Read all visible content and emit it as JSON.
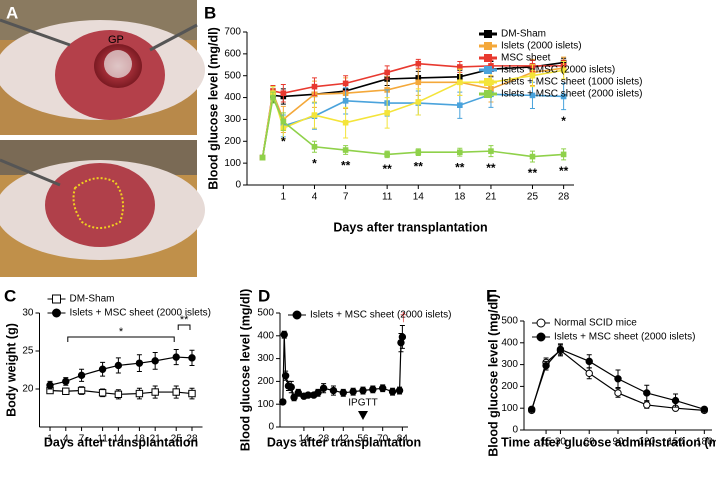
{
  "figure_a": {
    "panel": "A",
    "label": "GP"
  },
  "chart_data": [
    {
      "type": "line",
      "panel": "B",
      "ylabel": "Blood glucose level (mg/dl)",
      "xlabel": "Days after transplantation",
      "xlim": [
        -2.5,
        29
      ],
      "xticks": [
        1,
        4,
        7,
        11,
        14,
        18,
        21,
        25,
        28
      ],
      "ylim": [
        0,
        700
      ],
      "yticks": [
        0,
        100,
        200,
        300,
        400,
        500,
        600,
        700
      ],
      "legend": "upper right",
      "x": [
        -1,
        0,
        1,
        4,
        7,
        11,
        14,
        18,
        21,
        25,
        28
      ],
      "series": [
        {
          "name": "DM-Sham",
          "color": "#000000",
          "marker": "square",
          "filled": true,
          "values": [
            125,
            410,
            405,
            415,
            430,
            485,
            490,
            495,
            530,
            540,
            560
          ],
          "errors": [
            8,
            30,
            35,
            40,
            35,
            30,
            30,
            30,
            35,
            30,
            20
          ]
        },
        {
          "name": "Islets (2000 islets)",
          "color": "#f4a83a",
          "marker": "square",
          "filled": true,
          "values": [
            125,
            420,
            300,
            415,
            420,
            435,
            470,
            470,
            440,
            515,
            535
          ],
          "errors": [
            8,
            30,
            60,
            60,
            70,
            60,
            60,
            60,
            60,
            60,
            50
          ]
        },
        {
          "name": "MSC sheet",
          "color": "#e8392f",
          "marker": "square",
          "filled": true,
          "values": [
            125,
            430,
            420,
            450,
            465,
            515,
            555,
            540,
            545,
            545,
            545
          ],
          "errors": [
            8,
            25,
            40,
            40,
            35,
            30,
            20,
            25,
            25,
            25,
            25
          ]
        },
        {
          "name": "Islets + MSC (2000 islets)",
          "color": "#4aa3dc",
          "marker": "square",
          "filled": true,
          "values": [
            125,
            420,
            270,
            315,
            385,
            375,
            375,
            365,
            415,
            410,
            405
          ],
          "errors": [
            8,
            30,
            50,
            60,
            60,
            60,
            55,
            60,
            60,
            60,
            60
          ],
          "significance": [
            null,
            null,
            null,
            null,
            "*",
            null,
            null,
            null,
            null,
            null,
            "*"
          ]
        },
        {
          "name": "Islets + MSC sheet (1000 islets)",
          "color": "#f4e43a",
          "marker": "square",
          "filled": true,
          "values": [
            125,
            420,
            260,
            320,
            285,
            330,
            380,
            470,
            470,
            500,
            525
          ],
          "errors": [
            8,
            30,
            50,
            60,
            70,
            70,
            60,
            60,
            60,
            50,
            40
          ]
        },
        {
          "name": "Islets + MSC sheet (2000 islets)",
          "color": "#8fd14a",
          "marker": "square",
          "filled": true,
          "values": [
            125,
            400,
            290,
            175,
            160,
            140,
            150,
            150,
            155,
            130,
            140
          ],
          "errors": [
            8,
            25,
            40,
            25,
            20,
            15,
            15,
            18,
            25,
            25,
            25
          ],
          "significance": [
            null,
            null,
            "*",
            "*",
            "**",
            "**",
            "**",
            "**",
            "**",
            "**",
            "**"
          ]
        }
      ]
    },
    {
      "type": "line",
      "panel": "C",
      "ylabel": "Body weight (g)",
      "xlabel": "Days after transplantation",
      "xlim": [
        -1,
        30
      ],
      "xticks": [
        1,
        4,
        7,
        11,
        14,
        18,
        21,
        25,
        28
      ],
      "ylim": [
        15,
        30
      ],
      "yticks": [
        20,
        25,
        30
      ],
      "legend": "above left",
      "x": [
        1,
        4,
        7,
        11,
        14,
        18,
        21,
        25,
        28
      ],
      "series": [
        {
          "name": "DM-Sham",
          "color": "#000000",
          "marker": "square",
          "filled": false,
          "values": [
            19.8,
            19.7,
            19.8,
            19.5,
            19.3,
            19.4,
            19.6,
            19.6,
            19.4
          ],
          "errors": [
            0.4,
            0.4,
            0.5,
            0.5,
            0.6,
            0.7,
            0.8,
            0.8,
            0.7
          ]
        },
        {
          "name": "Islets + MSC sheet (2000 islets)",
          "color": "#000000",
          "marker": "circle",
          "filled": true,
          "values": [
            20.5,
            21,
            21.8,
            22.6,
            23.1,
            23.4,
            23.7,
            24.2,
            24.1
          ],
          "errors": [
            0.5,
            0.5,
            0.8,
            0.9,
            1,
            1.1,
            1.1,
            1,
            1
          ]
        }
      ],
      "brackets": [
        {
          "label": "*",
          "from": 4,
          "to": 25
        },
        {
          "label": "**",
          "from": 25,
          "to": 28
        }
      ]
    },
    {
      "type": "line",
      "panel": "D",
      "ylabel": "Blood glucose level (mg/dl)",
      "xlabel": "Days after transplantation",
      "xlim": [
        -3,
        88
      ],
      "xticks": [
        14,
        28,
        42,
        56,
        70,
        84
      ],
      "ylim": [
        0,
        500
      ],
      "yticks": [
        0,
        100,
        200,
        300,
        400,
        500
      ],
      "legend": "upper left",
      "x": [
        -1,
        0,
        1,
        3,
        5,
        7,
        10,
        14,
        17,
        21,
        24,
        28,
        35,
        42,
        49,
        56,
        63,
        70,
        77,
        82,
        83,
        84
      ],
      "series": [
        {
          "name": "Islets + MSC sheet (2000 islets)",
          "color": "#000000",
          "marker": "circle",
          "filled": true,
          "values": [
            110,
            405,
            225,
            180,
            175,
            130,
            150,
            135,
            140,
            140,
            150,
            170,
            160,
            150,
            155,
            160,
            165,
            170,
            155,
            160,
            370,
            395
          ],
          "errors": [
            10,
            15,
            20,
            20,
            25,
            15,
            15,
            10,
            10,
            10,
            15,
            20,
            20,
            15,
            15,
            15,
            15,
            15,
            15,
            15,
            40,
            50
          ]
        }
      ],
      "markers": [
        {
          "text": "IPGTT",
          "x": 56,
          "color": "#000000"
        },
        {
          "text": "†",
          "x": 84,
          "color": "#e05050"
        }
      ]
    },
    {
      "type": "line",
      "panel": "E",
      "ylabel": "Blood glucose level (mg/dl)",
      "xlabel": "Time after glucose administration (min)",
      "xlim": [
        -8,
        188
      ],
      "xticks": [
        15,
        30,
        60,
        90,
        120,
        150,
        180
      ],
      "ylim": [
        0,
        500
      ],
      "yticks": [
        0,
        100,
        200,
        300,
        400,
        500
      ],
      "legend": "upper left",
      "x": [
        0,
        15,
        30,
        60,
        90,
        120,
        150,
        180
      ],
      "series": [
        {
          "name": "Normal SCID mice",
          "color": "#000000",
          "marker": "circle",
          "filled": false,
          "values": [
            90,
            310,
            365,
            260,
            170,
            115,
            100,
            90
          ],
          "errors": [
            10,
            20,
            25,
            25,
            20,
            15,
            10,
            10
          ]
        },
        {
          "name": "Islets + MSC sheet (2000 islets)",
          "color": "#000000",
          "marker": "circle",
          "filled": true,
          "values": [
            95,
            295,
            370,
            315,
            235,
            170,
            135,
            95
          ],
          "errors": [
            10,
            20,
            25,
            30,
            40,
            35,
            30,
            10
          ]
        }
      ]
    }
  ]
}
